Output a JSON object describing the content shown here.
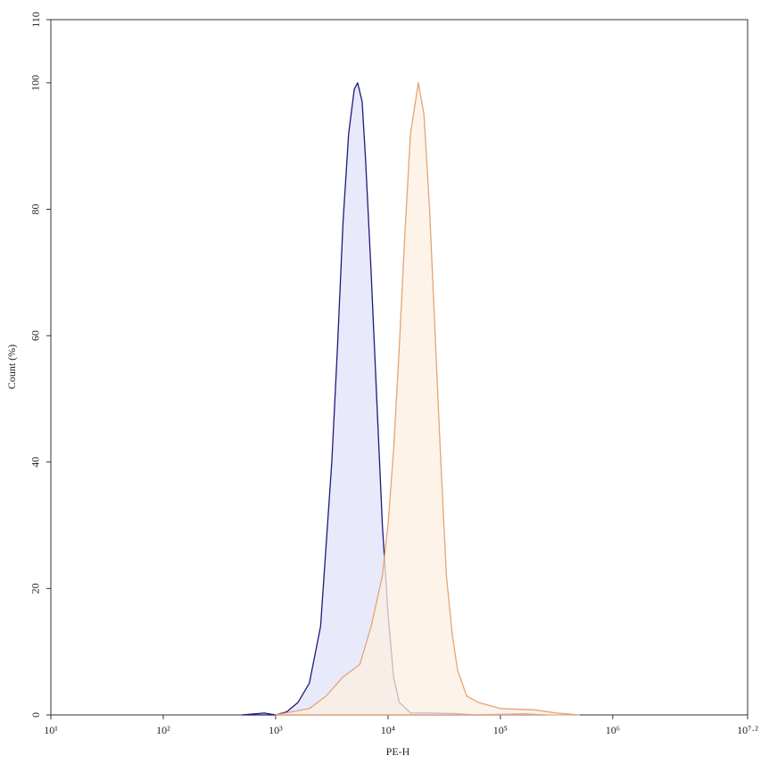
{
  "chart_data": {
    "type": "histogram-line",
    "x_label": "PE-H",
    "y_label": "Count (%)",
    "xscale": "log",
    "xlim": [
      10,
      15848932
    ],
    "xticks": [
      {
        "value": 10,
        "label": "10¹"
      },
      {
        "value": 100,
        "label": "10²"
      },
      {
        "value": 1000,
        "label": "10³"
      },
      {
        "value": 10000,
        "label": "10⁴"
      },
      {
        "value": 100000,
        "label": "10⁵"
      },
      {
        "value": 1000000,
        "label": "10⁶"
      },
      {
        "value": 15848932,
        "label": "10⁷·²"
      }
    ],
    "ylim": [
      0,
      110
    ],
    "yticks": [
      0,
      20,
      40,
      60,
      80,
      100,
      110
    ],
    "series": [
      {
        "color": "#1c1c78",
        "fill": "#e2e2fb",
        "x": [
          501,
          794,
          1000,
          1259,
          1585,
          1995,
          2512,
          3162,
          3548,
          3981,
          4467,
          5012,
          5370,
          5888,
          6310,
          7079,
          7943,
          8913,
          10000,
          11220,
          12589,
          15849,
          25119,
          39811,
          63096,
          158489,
          251189
        ],
        "values": [
          0,
          0.3,
          0,
          0.5,
          2,
          5,
          14,
          40,
          58,
          78,
          92,
          99,
          100,
          97,
          88,
          70,
          50,
          30,
          16,
          6,
          2,
          0.3,
          0.3,
          0.2,
          0,
          0.2,
          0
        ]
      },
      {
        "color": "#e3a574",
        "fill": "#fcefe2",
        "x": [
          1000,
          1995,
          2818,
          3981,
          5623,
          7079,
          8913,
          10000,
          11220,
          12589,
          14125,
          15849,
          18621,
          20893,
          23442,
          26303,
          29512,
          33113,
          37154,
          41687,
          50119,
          63096,
          100000,
          199526,
          316228,
          501187
        ],
        "values": [
          0,
          1,
          3,
          6,
          8,
          14,
          22,
          30,
          42,
          58,
          76,
          92,
          100,
          95,
          80,
          60,
          40,
          22,
          13,
          7,
          3,
          2,
          1,
          0.8,
          0.3,
          0
        ]
      }
    ]
  }
}
